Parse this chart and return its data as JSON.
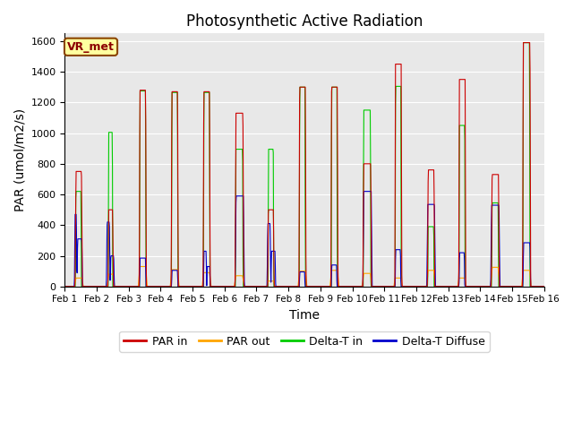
{
  "title": "Photosynthetic Active Radiation",
  "xlabel": "Time",
  "ylabel": "PAR (umol/m2/s)",
  "ylim": [
    0,
    1650
  ],
  "xlim": [
    0,
    15
  ],
  "label_box": "VR_met",
  "bg_color": "#e8e8e8",
  "xtick_labels": [
    "Feb 1",
    "Feb 2",
    "Feb 3",
    "Feb 4",
    "Feb 5",
    "Feb 6",
    "Feb 7",
    "Feb 8",
    "Feb 9",
    "Feb 10",
    "Feb 11",
    "Feb 12",
    "Feb 13",
    "Feb 14",
    "Feb 15",
    "Feb 16"
  ],
  "xtick_positions": [
    0,
    1,
    2,
    3,
    4,
    5,
    6,
    7,
    8,
    9,
    10,
    11,
    12,
    13,
    14,
    15
  ],
  "colors": {
    "PAR_in": "#cc0000",
    "PAR_out": "#ffa500",
    "Delta_T_in": "#00cc00",
    "Delta_T_Diffuse": "#0000cc"
  },
  "legend_labels": [
    "PAR in",
    "PAR out",
    "Delta-T in",
    "Delta-T Diffuse"
  ],
  "ytick_labels": [
    "0",
    "200",
    "400",
    "600",
    "800",
    "1000",
    "1200",
    "1400",
    "1600"
  ],
  "ytick_positions": [
    0,
    200,
    400,
    600,
    800,
    1000,
    1200,
    1400,
    1600
  ]
}
